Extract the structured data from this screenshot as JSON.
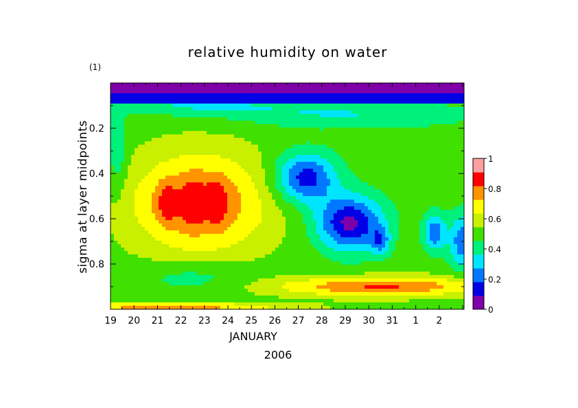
{
  "chart_data": {
    "type": "heatmap",
    "title": "relative humidity on water",
    "unit_label": "(1)",
    "ylabel": "sigma at layer midpoints",
    "xlabel": "JANUARY",
    "xlabel_year": "2006",
    "x_ticks": [
      "19",
      "20",
      "21",
      "22",
      "23",
      "24",
      "25",
      "26",
      "27",
      "28",
      "29",
      "30",
      "31",
      "1",
      "2"
    ],
    "y_ticks": [
      "0.2",
      "0.4",
      "0.6",
      "0.8"
    ],
    "y_tick_values": [
      0.2,
      0.4,
      0.6,
      0.8
    ],
    "ylim": [
      0.0,
      1.0
    ],
    "y_reversed": true,
    "xlim_days": [
      0,
      15.4
    ],
    "colorbar": {
      "ticks": [
        "0",
        "0.2",
        "0.4",
        "0.6",
        "0.8",
        "1"
      ],
      "levels": [
        0,
        0.1,
        0.2,
        0.3,
        0.4,
        0.5,
        0.6,
        0.7,
        0.8,
        0.9,
        1.0
      ],
      "colors": [
        "#7f00a8",
        "#0000e6",
        "#0078ff",
        "#00e5ff",
        "#00f07c",
        "#40e000",
        "#c8f000",
        "#ffff00",
        "#ff9400",
        "#ff0000",
        "#ffa0a0"
      ]
    },
    "grid": false
  }
}
